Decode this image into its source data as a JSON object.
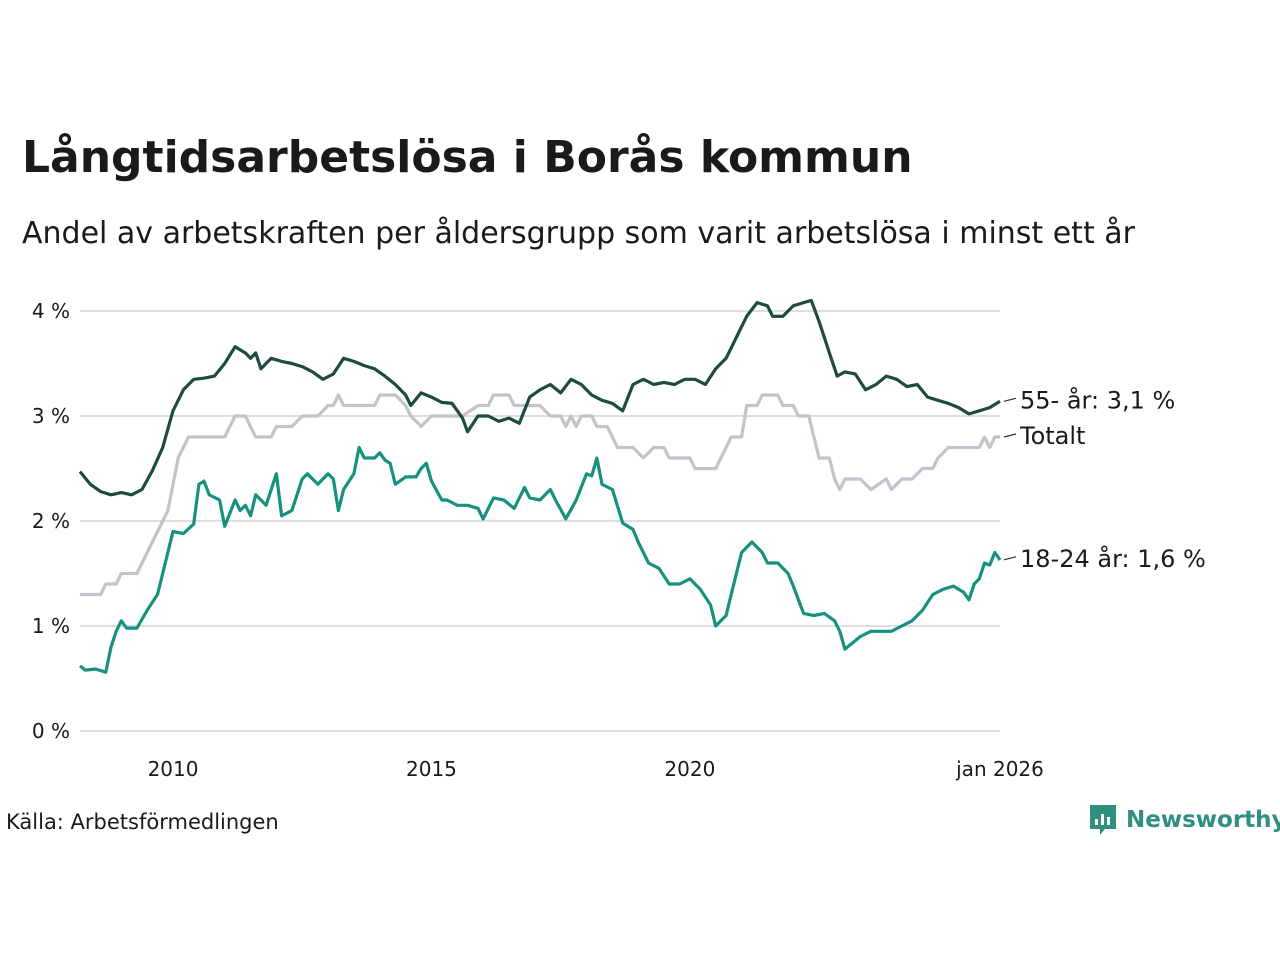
{
  "title": "Långtidsarbetslösa i Borås kommun",
  "subtitle": "Andel av arbetskraften per åldersgrupp som varit arbetslösa i minst ett år",
  "source": "Källa: Arbetsförmedlingen",
  "brand": "Newsworthy",
  "colors": {
    "older": "#1d4a41",
    "total": "#c4c2cd",
    "young": "#16917f",
    "grid": "#dedede",
    "brand": "#2f8f80"
  },
  "chart_data": {
    "type": "line",
    "ylim": [
      0,
      4
    ],
    "y_ticks": [
      0,
      1,
      2,
      3,
      4
    ],
    "y_tick_labels": [
      "0 %",
      "1 %",
      "2 %",
      "3 %",
      "4 %"
    ],
    "x_range": [
      2008.2,
      2026.0
    ],
    "x_ticks": [
      2010,
      2015,
      2020,
      2026
    ],
    "x_tick_labels": [
      "2010",
      "2015",
      "2020",
      "jan 2026"
    ],
    "series": [
      {
        "key": "total",
        "name": "Totalt",
        "label": "Totalt",
        "points": [
          [
            2008.2,
            1.3
          ],
          [
            2008.6,
            1.3
          ],
          [
            2008.7,
            1.4
          ],
          [
            2008.9,
            1.4
          ],
          [
            2009.0,
            1.5
          ],
          [
            2009.3,
            1.5
          ],
          [
            2009.5,
            1.7
          ],
          [
            2009.9,
            2.1
          ],
          [
            2010.1,
            2.6
          ],
          [
            2010.3,
            2.8
          ],
          [
            2010.8,
            2.8
          ],
          [
            2011.0,
            2.8
          ],
          [
            2011.2,
            3.0
          ],
          [
            2011.4,
            3.0
          ],
          [
            2011.6,
            2.8
          ],
          [
            2011.9,
            2.8
          ],
          [
            2012.0,
            2.9
          ],
          [
            2012.3,
            2.9
          ],
          [
            2012.5,
            3.0
          ],
          [
            2012.8,
            3.0
          ],
          [
            2013.0,
            3.1
          ],
          [
            2013.1,
            3.1
          ],
          [
            2013.2,
            3.2
          ],
          [
            2013.3,
            3.1
          ],
          [
            2013.9,
            3.1
          ],
          [
            2014.0,
            3.2
          ],
          [
            2014.3,
            3.2
          ],
          [
            2014.5,
            3.1
          ],
          [
            2014.6,
            3.0
          ],
          [
            2014.8,
            2.9
          ],
          [
            2015.0,
            3.0
          ],
          [
            2015.3,
            3.0
          ],
          [
            2015.6,
            3.0
          ],
          [
            2015.9,
            3.1
          ],
          [
            2016.1,
            3.1
          ],
          [
            2016.2,
            3.2
          ],
          [
            2016.5,
            3.2
          ],
          [
            2016.6,
            3.1
          ],
          [
            2016.8,
            3.1
          ],
          [
            2017.1,
            3.1
          ],
          [
            2017.3,
            3.0
          ],
          [
            2017.5,
            3.0
          ],
          [
            2017.6,
            2.9
          ],
          [
            2017.7,
            3.0
          ],
          [
            2017.8,
            2.9
          ],
          [
            2017.9,
            3.0
          ],
          [
            2018.1,
            3.0
          ],
          [
            2018.2,
            2.9
          ],
          [
            2018.4,
            2.9
          ],
          [
            2018.6,
            2.7
          ],
          [
            2018.9,
            2.7
          ],
          [
            2019.1,
            2.6
          ],
          [
            2019.3,
            2.7
          ],
          [
            2019.5,
            2.7
          ],
          [
            2019.6,
            2.6
          ],
          [
            2020.0,
            2.6
          ],
          [
            2020.1,
            2.5
          ],
          [
            2020.5,
            2.5
          ],
          [
            2020.8,
            2.8
          ],
          [
            2021.0,
            2.8
          ],
          [
            2021.1,
            3.1
          ],
          [
            2021.3,
            3.1
          ],
          [
            2021.4,
            3.2
          ],
          [
            2021.7,
            3.2
          ],
          [
            2021.8,
            3.1
          ],
          [
            2022.0,
            3.1
          ],
          [
            2022.1,
            3.0
          ],
          [
            2022.3,
            3.0
          ],
          [
            2022.4,
            2.8
          ],
          [
            2022.5,
            2.6
          ],
          [
            2022.7,
            2.6
          ],
          [
            2022.8,
            2.4
          ],
          [
            2022.9,
            2.3
          ],
          [
            2023.0,
            2.4
          ],
          [
            2023.3,
            2.4
          ],
          [
            2023.5,
            2.3
          ],
          [
            2023.8,
            2.4
          ],
          [
            2023.9,
            2.3
          ],
          [
            2024.1,
            2.4
          ],
          [
            2024.3,
            2.4
          ],
          [
            2024.5,
            2.5
          ],
          [
            2024.7,
            2.5
          ],
          [
            2024.8,
            2.6
          ],
          [
            2025.0,
            2.7
          ],
          [
            2025.6,
            2.7
          ],
          [
            2025.7,
            2.8
          ],
          [
            2025.8,
            2.7
          ],
          [
            2025.9,
            2.8
          ],
          [
            2026.0,
            2.8
          ]
        ]
      },
      {
        "key": "older",
        "name": "55- år",
        "label": "55- år: 3,1 %",
        "points": [
          [
            2008.2,
            2.47
          ],
          [
            2008.4,
            2.35
          ],
          [
            2008.6,
            2.28
          ],
          [
            2008.8,
            2.25
          ],
          [
            2009.0,
            2.27
          ],
          [
            2009.2,
            2.25
          ],
          [
            2009.4,
            2.3
          ],
          [
            2009.6,
            2.48
          ],
          [
            2009.8,
            2.7
          ],
          [
            2010.0,
            3.05
          ],
          [
            2010.2,
            3.25
          ],
          [
            2010.4,
            3.35
          ],
          [
            2010.6,
            3.36
          ],
          [
            2010.8,
            3.38
          ],
          [
            2011.0,
            3.5
          ],
          [
            2011.2,
            3.66
          ],
          [
            2011.4,
            3.6
          ],
          [
            2011.5,
            3.55
          ],
          [
            2011.6,
            3.6
          ],
          [
            2011.7,
            3.45
          ],
          [
            2011.9,
            3.55
          ],
          [
            2012.1,
            3.52
          ],
          [
            2012.3,
            3.5
          ],
          [
            2012.5,
            3.47
          ],
          [
            2012.7,
            3.42
          ],
          [
            2012.9,
            3.35
          ],
          [
            2013.1,
            3.4
          ],
          [
            2013.3,
            3.55
          ],
          [
            2013.5,
            3.52
          ],
          [
            2013.7,
            3.48
          ],
          [
            2013.9,
            3.45
          ],
          [
            2014.1,
            3.38
          ],
          [
            2014.3,
            3.3
          ],
          [
            2014.5,
            3.2
          ],
          [
            2014.6,
            3.1
          ],
          [
            2014.8,
            3.22
          ],
          [
            2015.0,
            3.18
          ],
          [
            2015.2,
            3.13
          ],
          [
            2015.4,
            3.12
          ],
          [
            2015.6,
            2.98
          ],
          [
            2015.7,
            2.85
          ],
          [
            2015.9,
            3.0
          ],
          [
            2016.1,
            3.0
          ],
          [
            2016.3,
            2.95
          ],
          [
            2016.5,
            2.98
          ],
          [
            2016.7,
            2.93
          ],
          [
            2016.9,
            3.18
          ],
          [
            2017.1,
            3.25
          ],
          [
            2017.3,
            3.3
          ],
          [
            2017.5,
            3.22
          ],
          [
            2017.7,
            3.35
          ],
          [
            2017.9,
            3.3
          ],
          [
            2018.1,
            3.2
          ],
          [
            2018.3,
            3.15
          ],
          [
            2018.5,
            3.12
          ],
          [
            2018.7,
            3.05
          ],
          [
            2018.9,
            3.3
          ],
          [
            2019.1,
            3.35
          ],
          [
            2019.3,
            3.3
          ],
          [
            2019.5,
            3.32
          ],
          [
            2019.7,
            3.3
          ],
          [
            2019.9,
            3.35
          ],
          [
            2020.1,
            3.35
          ],
          [
            2020.3,
            3.3
          ],
          [
            2020.5,
            3.45
          ],
          [
            2020.7,
            3.55
          ],
          [
            2020.9,
            3.75
          ],
          [
            2021.1,
            3.95
          ],
          [
            2021.3,
            4.08
          ],
          [
            2021.5,
            4.05
          ],
          [
            2021.6,
            3.95
          ],
          [
            2021.8,
            3.95
          ],
          [
            2022.0,
            4.05
          ],
          [
            2022.2,
            4.08
          ],
          [
            2022.35,
            4.1
          ],
          [
            2022.5,
            3.9
          ],
          [
            2022.7,
            3.6
          ],
          [
            2022.85,
            3.38
          ],
          [
            2023.0,
            3.42
          ],
          [
            2023.2,
            3.4
          ],
          [
            2023.4,
            3.25
          ],
          [
            2023.6,
            3.3
          ],
          [
            2023.8,
            3.38
          ],
          [
            2024.0,
            3.35
          ],
          [
            2024.2,
            3.28
          ],
          [
            2024.4,
            3.3
          ],
          [
            2024.6,
            3.18
          ],
          [
            2024.8,
            3.15
          ],
          [
            2025.0,
            3.12
          ],
          [
            2025.2,
            3.08
          ],
          [
            2025.4,
            3.02
          ],
          [
            2025.6,
            3.05
          ],
          [
            2025.8,
            3.08
          ],
          [
            2026.0,
            3.14
          ]
        ]
      },
      {
        "key": "young",
        "name": "18-24 år",
        "label": "18-24 år: 1,6 %",
        "points": [
          [
            2008.2,
            0.62
          ],
          [
            2008.3,
            0.58
          ],
          [
            2008.5,
            0.59
          ],
          [
            2008.7,
            0.56
          ],
          [
            2008.8,
            0.8
          ],
          [
            2008.9,
            0.95
          ],
          [
            2009.0,
            1.05
          ],
          [
            2009.1,
            0.98
          ],
          [
            2009.3,
            0.98
          ],
          [
            2009.5,
            1.15
          ],
          [
            2009.7,
            1.3
          ],
          [
            2009.8,
            1.5
          ],
          [
            2010.0,
            1.9
          ],
          [
            2010.2,
            1.88
          ],
          [
            2010.4,
            1.97
          ],
          [
            2010.5,
            2.35
          ],
          [
            2010.6,
            2.38
          ],
          [
            2010.7,
            2.25
          ],
          [
            2010.9,
            2.2
          ],
          [
            2011.0,
            1.95
          ],
          [
            2011.2,
            2.2
          ],
          [
            2011.3,
            2.1
          ],
          [
            2011.4,
            2.15
          ],
          [
            2011.5,
            2.05
          ],
          [
            2011.6,
            2.25
          ],
          [
            2011.8,
            2.15
          ],
          [
            2011.9,
            2.3
          ],
          [
            2012.0,
            2.45
          ],
          [
            2012.1,
            2.05
          ],
          [
            2012.3,
            2.1
          ],
          [
            2012.5,
            2.4
          ],
          [
            2012.6,
            2.45
          ],
          [
            2012.8,
            2.35
          ],
          [
            2013.0,
            2.45
          ],
          [
            2013.1,
            2.4
          ],
          [
            2013.2,
            2.1
          ],
          [
            2013.3,
            2.3
          ],
          [
            2013.5,
            2.45
          ],
          [
            2013.6,
            2.7
          ],
          [
            2013.7,
            2.6
          ],
          [
            2013.9,
            2.6
          ],
          [
            2014.0,
            2.65
          ],
          [
            2014.1,
            2.58
          ],
          [
            2014.2,
            2.55
          ],
          [
            2014.3,
            2.35
          ],
          [
            2014.5,
            2.42
          ],
          [
            2014.7,
            2.42
          ],
          [
            2014.8,
            2.5
          ],
          [
            2014.9,
            2.55
          ],
          [
            2015.0,
            2.38
          ],
          [
            2015.2,
            2.2
          ],
          [
            2015.3,
            2.2
          ],
          [
            2015.5,
            2.15
          ],
          [
            2015.7,
            2.15
          ],
          [
            2015.9,
            2.12
          ],
          [
            2016.0,
            2.02
          ],
          [
            2016.2,
            2.22
          ],
          [
            2016.4,
            2.2
          ],
          [
            2016.6,
            2.12
          ],
          [
            2016.8,
            2.32
          ],
          [
            2016.9,
            2.22
          ],
          [
            2017.1,
            2.2
          ],
          [
            2017.3,
            2.3
          ],
          [
            2017.4,
            2.2
          ],
          [
            2017.6,
            2.02
          ],
          [
            2017.8,
            2.2
          ],
          [
            2018.0,
            2.45
          ],
          [
            2018.1,
            2.43
          ],
          [
            2018.2,
            2.6
          ],
          [
            2018.3,
            2.35
          ],
          [
            2018.5,
            2.3
          ],
          [
            2018.7,
            1.98
          ],
          [
            2018.9,
            1.92
          ],
          [
            2019.0,
            1.8
          ],
          [
            2019.2,
            1.6
          ],
          [
            2019.4,
            1.55
          ],
          [
            2019.6,
            1.4
          ],
          [
            2019.8,
            1.4
          ],
          [
            2020.0,
            1.45
          ],
          [
            2020.2,
            1.35
          ],
          [
            2020.4,
            1.2
          ],
          [
            2020.5,
            1.0
          ],
          [
            2020.7,
            1.1
          ],
          [
            2020.8,
            1.3
          ],
          [
            2021.0,
            1.7
          ],
          [
            2021.2,
            1.8
          ],
          [
            2021.4,
            1.7
          ],
          [
            2021.5,
            1.6
          ],
          [
            2021.7,
            1.6
          ],
          [
            2021.9,
            1.5
          ],
          [
            2022.0,
            1.38
          ],
          [
            2022.1,
            1.25
          ],
          [
            2022.2,
            1.12
          ],
          [
            2022.4,
            1.1
          ],
          [
            2022.6,
            1.12
          ],
          [
            2022.8,
            1.05
          ],
          [
            2022.9,
            0.95
          ],
          [
            2023.0,
            0.78
          ],
          [
            2023.1,
            0.82
          ],
          [
            2023.3,
            0.9
          ],
          [
            2023.5,
            0.95
          ],
          [
            2023.7,
            0.95
          ],
          [
            2023.9,
            0.95
          ],
          [
            2024.1,
            1.0
          ],
          [
            2024.3,
            1.05
          ],
          [
            2024.5,
            1.15
          ],
          [
            2024.7,
            1.3
          ],
          [
            2024.9,
            1.35
          ],
          [
            2025.1,
            1.38
          ],
          [
            2025.3,
            1.32
          ],
          [
            2025.4,
            1.25
          ],
          [
            2025.5,
            1.4
          ],
          [
            2025.6,
            1.45
          ],
          [
            2025.7,
            1.6
          ],
          [
            2025.8,
            1.58
          ],
          [
            2025.9,
            1.7
          ],
          [
            2026.0,
            1.63
          ]
        ]
      }
    ]
  }
}
